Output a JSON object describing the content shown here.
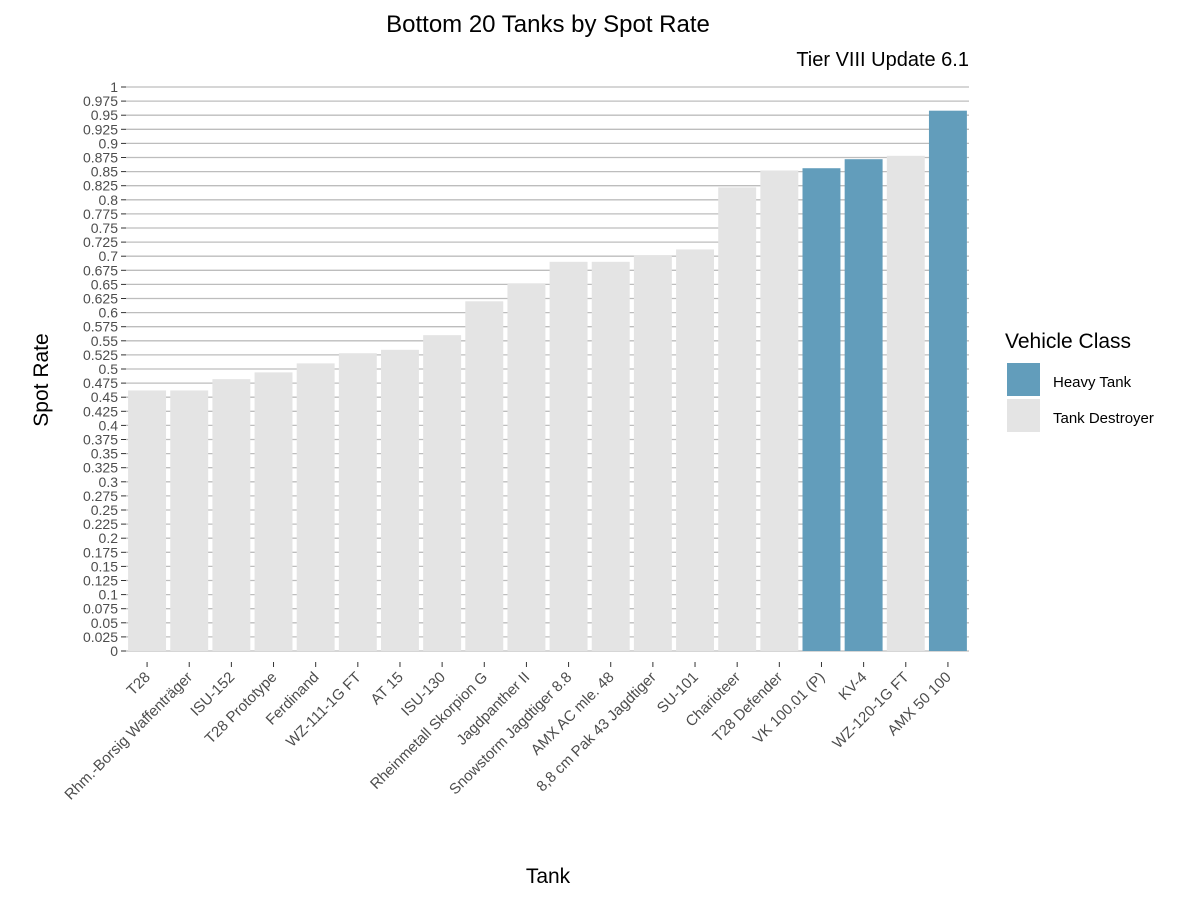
{
  "chart_data": {
    "type": "bar",
    "title": "Bottom 20 Tanks by Spot Rate",
    "subtitle": "Tier VIII Update 6.1",
    "xlabel": "Tank",
    "ylabel": "Spot Rate",
    "ylim": [
      0,
      1
    ],
    "ytick_step": 0.025,
    "grid": true,
    "legend": {
      "title": "Vehicle Class",
      "placement": "right",
      "entries": [
        {
          "name": "Heavy Tank",
          "color": "#629dbb"
        },
        {
          "name": "Tank Destroyer",
          "color": "#e4e4e4"
        }
      ]
    },
    "categories": [
      "T28",
      "Rhm.-Borsig Waffenträger",
      "ISU-152",
      "T28 Prototype",
      "Ferdinand",
      "WZ-111-1G FT",
      "AT 15",
      "ISU-130",
      "Rheinmetall Skorpion G",
      "Jagdpanther II",
      "Snowstorm Jagdtiger 8.8",
      "AMX AC mle. 48",
      "8,8 cm Pak 43 Jagdtiger",
      "SU-101",
      "Charioteer",
      "T28 Defender",
      "VK 100.01 (P)",
      "KV-4",
      "WZ-120-1G FT",
      "AMX 50 100"
    ],
    "values": [
      0.462,
      0.462,
      0.482,
      0.494,
      0.51,
      0.528,
      0.534,
      0.56,
      0.62,
      0.652,
      0.69,
      0.69,
      0.702,
      0.712,
      0.822,
      0.852,
      0.856,
      0.872,
      0.878,
      0.958
    ],
    "classes": [
      "Tank Destroyer",
      "Tank Destroyer",
      "Tank Destroyer",
      "Tank Destroyer",
      "Tank Destroyer",
      "Tank Destroyer",
      "Tank Destroyer",
      "Tank Destroyer",
      "Tank Destroyer",
      "Tank Destroyer",
      "Tank Destroyer",
      "Tank Destroyer",
      "Tank Destroyer",
      "Tank Destroyer",
      "Tank Destroyer",
      "Tank Destroyer",
      "Heavy Tank",
      "Heavy Tank",
      "Tank Destroyer",
      "Heavy Tank"
    ]
  }
}
